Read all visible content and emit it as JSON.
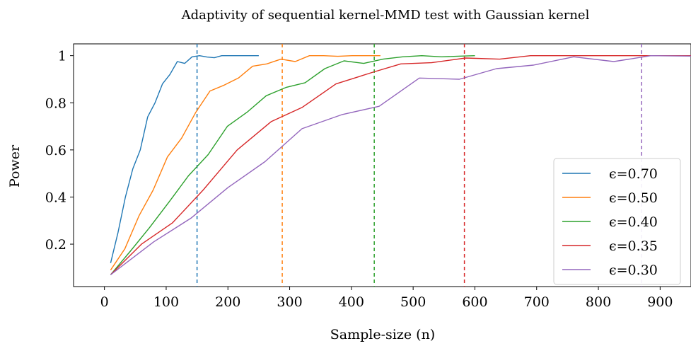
{
  "chart_data": {
    "type": "line",
    "title": "Adaptivity of sequential kernel-MMD test with Gaussian kernel",
    "xlabel": "Sample-size (n)",
    "ylabel": "Power",
    "xlim": [
      -50,
      950
    ],
    "ylim": [
      0.02,
      1.05
    ],
    "xticks": [
      0,
      100,
      200,
      300,
      400,
      500,
      600,
      700,
      800,
      900
    ],
    "yticks": [
      0.2,
      0.4,
      0.6,
      0.8,
      1
    ],
    "ytick_labels": [
      "0.2",
      "0.4",
      "0.6",
      "0.8",
      "1"
    ],
    "grid": false,
    "legend_position": "bottom-right",
    "series": [
      {
        "name": "ϵ=0.70",
        "color": "#1f77b4",
        "vline": 150,
        "x": [
          10,
          22,
          34,
          46,
          58,
          70,
          82,
          94,
          106,
          118,
          130,
          142,
          154,
          166,
          178,
          190,
          202,
          214,
          226,
          238,
          250
        ],
        "y": [
          0.12,
          0.25,
          0.4,
          0.52,
          0.6,
          0.74,
          0.8,
          0.88,
          0.92,
          0.975,
          0.967,
          0.995,
          1.0,
          0.994,
          0.991,
          1.0,
          1.0,
          1.0,
          1.0,
          1.0,
          1.0
        ]
      },
      {
        "name": "ϵ=0.50",
        "color": "#ff7f0e",
        "vline": 288,
        "x": [
          10,
          33,
          56,
          79,
          102,
          125,
          148,
          171,
          194,
          217,
          240,
          263,
          286,
          309,
          332,
          355,
          378,
          401,
          424,
          447
        ],
        "y": [
          0.09,
          0.18,
          0.32,
          0.43,
          0.57,
          0.65,
          0.76,
          0.85,
          0.875,
          0.905,
          0.955,
          0.965,
          0.985,
          0.975,
          1.0,
          1.0,
          0.997,
          1.0,
          1.0,
          1.0
        ]
      },
      {
        "name": "ϵ=0.40",
        "color": "#2ca02c",
        "vline": 437,
        "x": [
          10,
          42,
          73,
          105,
          136,
          168,
          199,
          231,
          262,
          294,
          325,
          357,
          388,
          420,
          451,
          483,
          514,
          546,
          577,
          600
        ],
        "y": [
          0.07,
          0.17,
          0.27,
          0.38,
          0.49,
          0.58,
          0.7,
          0.76,
          0.83,
          0.865,
          0.885,
          0.945,
          0.978,
          0.967,
          0.985,
          0.995,
          1.0,
          0.995,
          0.998,
          1.0
        ]
      },
      {
        "name": "ϵ=0.35",
        "color": "#d62728",
        "vline": 583,
        "x": [
          10,
          60,
          110,
          160,
          215,
          270,
          320,
          375,
          435,
          480,
          530,
          585,
          640,
          690,
          740,
          790,
          840,
          890,
          950
        ],
        "y": [
          0.07,
          0.2,
          0.29,
          0.43,
          0.6,
          0.72,
          0.78,
          0.88,
          0.93,
          0.965,
          0.97,
          0.99,
          0.985,
          1.0,
          1.0,
          1.0,
          1.0,
          1.0,
          1.0
        ]
      },
      {
        "name": "ϵ=0.30",
        "color": "#9467bd",
        "vline": 870,
        "x": [
          10,
          80,
          140,
          200,
          260,
          320,
          385,
          445,
          510,
          575,
          635,
          695,
          760,
          825,
          885,
          950
        ],
        "y": [
          0.07,
          0.21,
          0.31,
          0.44,
          0.55,
          0.69,
          0.75,
          0.785,
          0.905,
          0.9,
          0.945,
          0.96,
          0.995,
          0.975,
          1.0,
          0.998
        ]
      }
    ]
  }
}
